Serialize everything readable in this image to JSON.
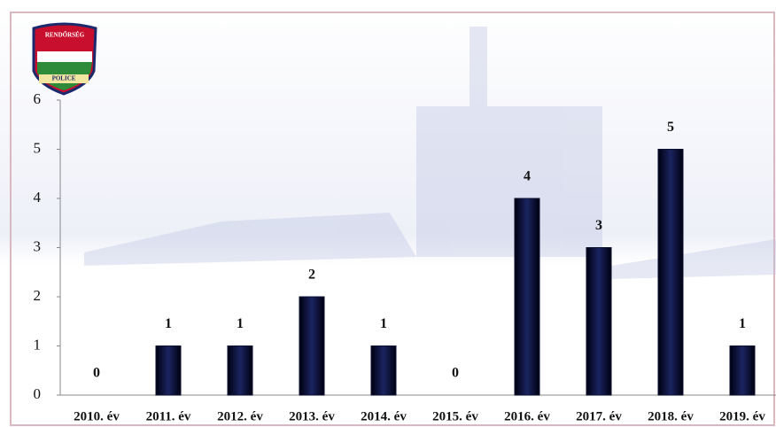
{
  "logo": {
    "top": "RENDŐRSÉG",
    "bottom": "POLICE"
  },
  "chart_data": {
    "type": "bar",
    "categories": [
      "2010. év",
      "2011. év",
      "2012. év",
      "2013. év",
      "2014. év",
      "2015. év",
      "2016. év",
      "2017. év",
      "2018. év",
      "2019. év"
    ],
    "values": [
      0,
      1,
      1,
      2,
      1,
      0,
      4,
      3,
      5,
      1
    ],
    "color": "#0a1030",
    "ylim": [
      0,
      6
    ],
    "yticks": [
      0,
      1,
      2,
      3,
      4,
      5,
      6
    ]
  }
}
